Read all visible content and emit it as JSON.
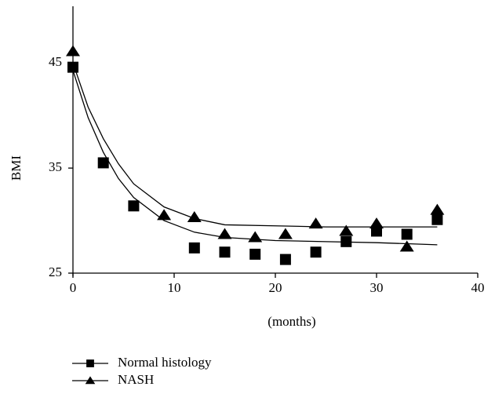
{
  "chart_data": {
    "type": "scatter",
    "x_label": "(months)",
    "y_label": "BMI",
    "xlim": [
      0,
      40
    ],
    "xticks": [
      0,
      10,
      20,
      30,
      40
    ],
    "ylim": [
      25,
      50.4
    ],
    "yticks": [
      25,
      35,
      45
    ],
    "series": [
      {
        "name": "Normal histology",
        "marker": "square",
        "color": "#000000",
        "x": [
          0,
          3,
          6,
          12,
          15,
          18,
          21,
          24,
          27,
          30,
          33,
          36
        ],
        "values": [
          44.6,
          35.5,
          31.4,
          27.4,
          27.0,
          26.8,
          26.3,
          27.0,
          28.0,
          29.0,
          28.7,
          30.1
        ],
        "fit": {
          "x": [
            0,
            1.5,
            3,
            4.5,
            6,
            9,
            12,
            15,
            20,
            25,
            30,
            36
          ],
          "values": [
            44.3,
            39.8,
            36.5,
            34.0,
            32.2,
            30.0,
            28.9,
            28.4,
            28.1,
            28.0,
            27.9,
            27.7
          ]
        }
      },
      {
        "name": "NASH",
        "marker": "triangle",
        "color": "#000000",
        "x": [
          0,
          9,
          12,
          15,
          18,
          21,
          24,
          27,
          30,
          33,
          36
        ],
        "values": [
          46.1,
          30.5,
          30.3,
          28.7,
          28.4,
          28.7,
          29.7,
          29.0,
          29.7,
          27.5,
          31.0
        ],
        "fit": {
          "x": [
            0,
            1.5,
            3,
            4.5,
            6,
            9,
            12,
            15,
            20,
            25,
            30,
            36
          ],
          "values": [
            45.0,
            40.8,
            37.8,
            35.4,
            33.5,
            31.3,
            30.2,
            29.6,
            29.5,
            29.4,
            29.4,
            29.4
          ]
        }
      }
    ]
  }
}
